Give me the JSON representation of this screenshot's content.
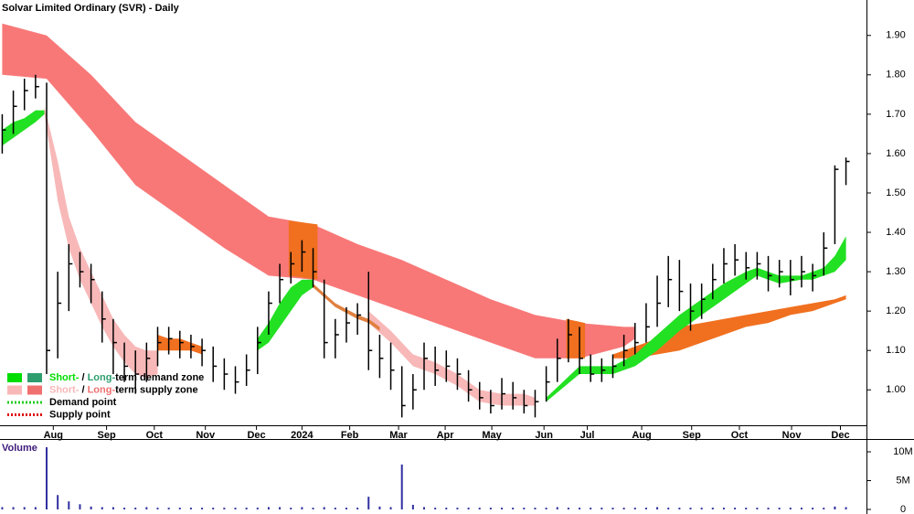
{
  "chart_data": [
    {
      "type": "ohlc",
      "title": "Solvar Limited Ordinary (SVR) - Daily",
      "color": "#000000",
      "x": [
        0,
        1,
        2,
        3,
        4,
        5,
        6,
        7,
        8,
        9,
        10,
        11,
        12,
        13,
        14,
        15,
        16,
        17,
        18,
        19,
        20,
        21,
        22,
        23,
        24,
        25,
        26,
        27,
        28,
        29,
        30,
        31,
        32,
        33,
        34,
        35,
        36,
        37,
        38,
        39,
        40,
        41,
        42,
        43,
        44,
        45,
        46,
        47,
        48,
        49,
        50,
        51,
        52,
        53,
        54,
        55,
        56,
        57,
        58,
        59,
        60,
        61,
        62,
        63,
        64,
        65,
        66,
        67,
        68,
        69,
        70,
        71,
        72,
        73,
        74,
        75,
        76
      ],
      "high": [
        1.7,
        1.76,
        1.79,
        1.8,
        1.78,
        1.3,
        1.37,
        1.35,
        1.32,
        1.25,
        1.18,
        1.12,
        1.1,
        1.12,
        1.16,
        1.16,
        1.15,
        1.14,
        1.13,
        1.11,
        1.08,
        1.06,
        1.09,
        1.16,
        1.25,
        1.32,
        1.35,
        1.38,
        1.36,
        1.28,
        1.18,
        1.21,
        1.22,
        1.3,
        1.14,
        1.12,
        1.06,
        1.04,
        1.12,
        1.11,
        1.1,
        1.08,
        1.05,
        1.02,
        1.0,
        1.03,
        1.02,
        1.0,
        1.0,
        1.06,
        1.13,
        1.18,
        1.16,
        1.09,
        1.08,
        1.09,
        1.14,
        1.17,
        1.22,
        1.29,
        1.34,
        1.33,
        1.27,
        1.27,
        1.32,
        1.36,
        1.37,
        1.35,
        1.35,
        1.34,
        1.33,
        1.33,
        1.34,
        1.32,
        1.4,
        1.57,
        1.59
      ],
      "low": [
        1.6,
        1.65,
        1.71,
        1.74,
        1.04,
        1.08,
        1.2,
        1.26,
        1.22,
        1.12,
        1.04,
        1.02,
        0.99,
        1.02,
        1.06,
        1.09,
        1.08,
        1.08,
        1.06,
        1.02,
        1.0,
        0.99,
        1.01,
        1.04,
        1.14,
        1.22,
        1.27,
        1.3,
        1.26,
        1.08,
        1.08,
        1.12,
        1.14,
        1.05,
        1.03,
        1.0,
        0.93,
        0.95,
        1.0,
        1.01,
        1.02,
        1.0,
        0.97,
        0.95,
        0.94,
        0.95,
        0.95,
        0.94,
        0.93,
        0.97,
        1.02,
        1.07,
        1.04,
        1.02,
        1.02,
        1.03,
        1.06,
        1.09,
        1.12,
        1.16,
        1.21,
        1.2,
        1.15,
        1.18,
        1.23,
        1.27,
        1.29,
        1.28,
        1.28,
        1.25,
        1.26,
        1.24,
        1.26,
        1.25,
        1.29,
        1.37,
        1.52
      ],
      "close": [
        1.66,
        1.72,
        1.76,
        1.77,
        1.1,
        1.22,
        1.32,
        1.3,
        1.28,
        1.18,
        1.12,
        1.06,
        1.04,
        1.08,
        1.12,
        1.13,
        1.12,
        1.11,
        1.1,
        1.06,
        1.04,
        1.02,
        1.05,
        1.12,
        1.22,
        1.28,
        1.32,
        1.35,
        1.3,
        1.12,
        1.14,
        1.17,
        1.19,
        1.1,
        1.08,
        1.05,
        0.96,
        1.0,
        1.08,
        1.05,
        1.06,
        1.04,
        1.0,
        0.98,
        0.96,
        0.99,
        0.98,
        0.96,
        0.97,
        1.02,
        1.08,
        1.14,
        1.08,
        1.04,
        1.05,
        1.06,
        1.1,
        1.12,
        1.16,
        1.22,
        1.28,
        1.25,
        1.2,
        1.23,
        1.28,
        1.32,
        1.33,
        1.31,
        1.32,
        1.29,
        1.3,
        1.28,
        1.3,
        1.29,
        1.36,
        1.56,
        1.58
      ],
      "zones": [
        {
          "color": "#f87878",
          "x": [
            0,
            4,
            8,
            12,
            16,
            20,
            24,
            28,
            32,
            36,
            40,
            44,
            48,
            52,
            56,
            57
          ],
          "upper": [
            1.93,
            1.9,
            1.8,
            1.68,
            1.6,
            1.52,
            1.44,
            1.42,
            1.37,
            1.33,
            1.28,
            1.23,
            1.19,
            1.17,
            1.16,
            1.16
          ],
          "lower": [
            1.8,
            1.79,
            1.66,
            1.52,
            1.44,
            1.36,
            1.29,
            1.28,
            1.24,
            1.2,
            1.16,
            1.12,
            1.08,
            1.08,
            1.11,
            1.13
          ]
        },
        {
          "color": "#f07020",
          "x": [
            25.8,
            28.4
          ],
          "upper": [
            1.43,
            1.42
          ],
          "lower": [
            1.29,
            1.28
          ]
        },
        {
          "color": "#f07020",
          "x": [
            50.8,
            52.5
          ],
          "upper": [
            1.18,
            1.17
          ],
          "lower": [
            1.08,
            1.08
          ]
        },
        {
          "color": "#f8b8b8",
          "x": [
            3.8,
            5,
            6,
            7,
            8,
            9,
            10,
            11,
            12,
            13,
            14
          ],
          "upper": [
            1.72,
            1.58,
            1.44,
            1.36,
            1.3,
            1.24,
            1.18,
            1.14,
            1.11,
            1.1,
            1.1
          ],
          "lower": [
            1.7,
            1.48,
            1.36,
            1.28,
            1.22,
            1.16,
            1.11,
            1.07,
            1.04,
            1.03,
            1.04
          ]
        },
        {
          "color": "#f8b8b8",
          "x": [
            33,
            35,
            37,
            39,
            41,
            43,
            45,
            47,
            48
          ],
          "upper": [
            1.2,
            1.15,
            1.09,
            1.07,
            1.04,
            1.0,
            0.99,
            0.99,
            0.98
          ],
          "lower": [
            1.17,
            1.12,
            1.06,
            1.04,
            1.01,
            0.97,
            0.96,
            0.96,
            0.96
          ]
        },
        {
          "color": "#f07020",
          "x": [
            14,
            15,
            16,
            17,
            18
          ],
          "upper": [
            1.14,
            1.13,
            1.13,
            1.12,
            1.11
          ],
          "lower": [
            1.1,
            1.1,
            1.1,
            1.1,
            1.09
          ]
        },
        {
          "color": "#22e022",
          "x": [
            0,
            1,
            2,
            3,
            3.8
          ],
          "upper": [
            1.66,
            1.68,
            1.69,
            1.71,
            1.71
          ],
          "lower": [
            1.62,
            1.64,
            1.66,
            1.68,
            1.7
          ]
        },
        {
          "color": "#22e022",
          "x": [
            23,
            24,
            25,
            26,
            27,
            28
          ],
          "upper": [
            1.13,
            1.17,
            1.22,
            1.26,
            1.28,
            1.28
          ],
          "lower": [
            1.1,
            1.12,
            1.16,
            1.2,
            1.24,
            1.26
          ]
        },
        {
          "color": "#e08040",
          "x": [
            28,
            30,
            32,
            33,
            34
          ],
          "upper": [
            1.27,
            1.22,
            1.19,
            1.18,
            1.16
          ],
          "lower": [
            1.26,
            1.21,
            1.18,
            1.17,
            1.15
          ]
        },
        {
          "color": "#f07020",
          "x": [
            55,
            57,
            59,
            61,
            63,
            65,
            67,
            69,
            71,
            73,
            75,
            76
          ],
          "upper": [
            1.09,
            1.11,
            1.13,
            1.16,
            1.17,
            1.18,
            1.19,
            1.2,
            1.21,
            1.22,
            1.23,
            1.24
          ],
          "lower": [
            1.08,
            1.08,
            1.09,
            1.1,
            1.12,
            1.14,
            1.16,
            1.17,
            1.19,
            1.2,
            1.22,
            1.23
          ]
        },
        {
          "color": "#22e022",
          "x": [
            49,
            52,
            55,
            57,
            59,
            61,
            63,
            65,
            67,
            68,
            69,
            70,
            72,
            73,
            74,
            75,
            76
          ],
          "upper": [
            0.98,
            1.06,
            1.06,
            1.09,
            1.14,
            1.19,
            1.23,
            1.27,
            1.3,
            1.31,
            1.3,
            1.29,
            1.29,
            1.3,
            1.31,
            1.34,
            1.39
          ],
          "lower": [
            0.97,
            1.04,
            1.04,
            1.06,
            1.1,
            1.15,
            1.19,
            1.23,
            1.27,
            1.29,
            1.28,
            1.27,
            1.28,
            1.28,
            1.29,
            1.3,
            1.33
          ]
        }
      ],
      "xlim": [
        -0.2,
        77.6
      ],
      "xticks": [
        {
          "value": 4.6,
          "label": "Aug"
        },
        {
          "value": 9.4,
          "label": "Sep"
        },
        {
          "value": 13.7,
          "label": "Oct"
        },
        {
          "value": 18.3,
          "label": "Nov"
        },
        {
          "value": 22.9,
          "label": "Dec"
        },
        {
          "value": 27.0,
          "label": "2024"
        },
        {
          "value": 31.3,
          "label": "Feb"
        },
        {
          "value": 35.7,
          "label": "Mar"
        },
        {
          "value": 39.9,
          "label": "Apr"
        },
        {
          "value": 44.1,
          "label": "May"
        },
        {
          "value": 48.8,
          "label": "Jun"
        },
        {
          "value": 52.7,
          "label": "Jul"
        },
        {
          "value": 57.6,
          "label": "Aug"
        },
        {
          "value": 62.1,
          "label": "Sep"
        },
        {
          "value": 66.4,
          "label": "Oct"
        },
        {
          "value": 71.1,
          "label": "Nov"
        },
        {
          "value": 75.5,
          "label": "Dec"
        }
      ],
      "ylim": [
        0.91,
        1.99
      ],
      "yticks": [
        {
          "value": 1.0,
          "label": "1.00"
        },
        {
          "value": 1.1,
          "label": "1.10"
        },
        {
          "value": 1.2,
          "label": "1.20"
        },
        {
          "value": 1.3,
          "label": "1.30"
        },
        {
          "value": 1.4,
          "label": "1.40"
        },
        {
          "value": 1.5,
          "label": "1.50"
        },
        {
          "value": 1.6,
          "label": "1.60"
        },
        {
          "value": 1.7,
          "label": "1.70"
        },
        {
          "value": 1.8,
          "label": "1.80"
        },
        {
          "value": 1.9,
          "label": "1.90"
        }
      ],
      "legend_position": "bottom-left",
      "legend": [
        {
          "parts": [
            "Short-",
            " / ",
            "Long-",
            "term demand zone"
          ],
          "colors": [
            "#00dd00",
            "#2e9e6e"
          ]
        },
        {
          "parts": [
            "Short-",
            " / ",
            "Long-",
            "term supply zone"
          ],
          "colors": [
            "#f8b8b8",
            "#f07070"
          ]
        },
        {
          "label": "Demand point",
          "color": "#22cc22"
        },
        {
          "label": "Supply point",
          "color": "#dd0000"
        }
      ]
    },
    {
      "type": "bar",
      "title": "Volume",
      "color": "#3030a0",
      "x": [
        0,
        1,
        2,
        3,
        4,
        5,
        6,
        7,
        8,
        9,
        10,
        11,
        12,
        13,
        14,
        15,
        16,
        17,
        18,
        19,
        20,
        21,
        22,
        23,
        24,
        25,
        26,
        27,
        28,
        29,
        30,
        31,
        32,
        33,
        34,
        35,
        36,
        37,
        38,
        39,
        40,
        41,
        42,
        43,
        44,
        45,
        46,
        47,
        48,
        49,
        50,
        51,
        52,
        53,
        54,
        55,
        56,
        57,
        58,
        59,
        60,
        61,
        62,
        63,
        64,
        65,
        66,
        67,
        68,
        69,
        70,
        71,
        72,
        73,
        74,
        75,
        76
      ],
      "values": [
        400000,
        400000,
        400000,
        400000,
        10800000,
        2500000,
        1400000,
        900000,
        500000,
        400000,
        400000,
        300000,
        300000,
        400000,
        300000,
        300000,
        300000,
        300000,
        300000,
        300000,
        300000,
        300000,
        300000,
        300000,
        400000,
        400000,
        300000,
        400000,
        300000,
        400000,
        300000,
        300000,
        300000,
        2200000,
        500000,
        400000,
        7800000,
        800000,
        400000,
        300000,
        300000,
        300000,
        300000,
        300000,
        300000,
        300000,
        300000,
        300000,
        300000,
        300000,
        400000,
        300000,
        300000,
        300000,
        300000,
        300000,
        300000,
        300000,
        300000,
        400000,
        300000,
        300000,
        300000,
        300000,
        300000,
        300000,
        300000,
        300000,
        300000,
        300000,
        300000,
        300000,
        300000,
        300000,
        300000,
        500000,
        400000
      ],
      "xlim": [
        -0.2,
        77.6
      ],
      "ylim": [
        0,
        12000000
      ],
      "yticks": [
        0,
        {
          "value": 5000000,
          "label": "5M"
        },
        {
          "value": 10000000,
          "label": "10M"
        }
      ]
    }
  ]
}
